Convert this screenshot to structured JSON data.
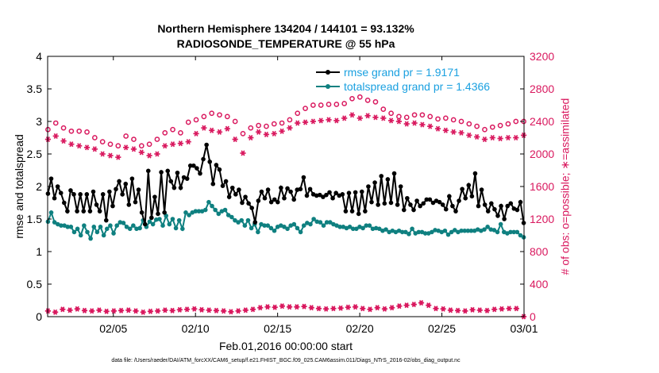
{
  "chart_data": {
    "type": "line",
    "title": "Northern Hemisphere 134204 / 144101 = 93.132%",
    "subtitle": "RADIOSONDE_TEMPERATURE @ 55 hPa",
    "xlabel": "Feb.01,2016 00:00:00 start",
    "ylabel": "rmse and totalspread",
    "y2label": "# of obs: o=possible; ∗=assimilated",
    "footnote": "data file: /Users/raeder/DAI/ATM_forcXX/CAM6_setup/f.e21.FHIST_BGC.f09_025.CAM6assim.011/Diags_NTrS_2016-02/obs_diag_output.nc",
    "xlim": [
      1,
      30
    ],
    "x_ticks": [
      5,
      10,
      15,
      20,
      25,
      30
    ],
    "x_tick_labels": [
      "02/05",
      "02/10",
      "02/15",
      "02/20",
      "02/25",
      "03/01"
    ],
    "ylim": [
      0,
      4
    ],
    "y_ticks": [
      "0",
      "0.5",
      "1",
      "1.5",
      "2",
      "2.5",
      "3",
      "3.5",
      "4"
    ],
    "y2lim": [
      0,
      3200
    ],
    "y2_ticks": [
      "0",
      "400",
      "800",
      "1200",
      "1600",
      "2000",
      "2400",
      "2800",
      "3200"
    ],
    "grid": false,
    "legend_position": "top-right",
    "colors": {
      "rmse": "#000000",
      "spread": "#0f8080",
      "obs": "#d9185e",
      "legend_text": "#1aa0e0"
    },
    "legend": [
      {
        "label": "rmse grand pr = 1.9171"
      },
      {
        "label": "totalspread grand pr = 1.4366"
      }
    ],
    "series": [
      {
        "name": "rmse grand pr = 1.9171",
        "axis": "left",
        "values": [
          1.89,
          2.12,
          1.82,
          2.0,
          1.9,
          1.75,
          1.62,
          1.94,
          1.88,
          1.62,
          1.88,
          1.62,
          1.88,
          1.62,
          1.92,
          1.72,
          1.62,
          1.88,
          1.48,
          1.92,
          1.7,
          1.96,
          2.08,
          1.88,
          2.04,
          1.72,
          2.12,
          1.76,
          1.95,
          1.6,
          1.42,
          2.24,
          1.52,
          1.84,
          1.58,
          2.22,
          1.6,
          2.24,
          2.08,
          1.98,
          2.21,
          1.98,
          2.14,
          2.12,
          2.32,
          2.32,
          2.28,
          2.2,
          2.42,
          2.64,
          2.38,
          2.04,
          2.33,
          2.26,
          2.01,
          2.08,
          1.84,
          1.98,
          1.88,
          1.95,
          1.75,
          1.84,
          1.74,
          1.67,
          1.45,
          1.78,
          1.92,
          1.82,
          1.95,
          1.76,
          1.8,
          1.76,
          1.98,
          1.82,
          1.97,
          1.92,
          1.8,
          1.95,
          1.96,
          2.14,
          1.86,
          1.96,
          1.88,
          1.86,
          1.87,
          1.84,
          1.87,
          1.91,
          1.82,
          1.9,
          1.86,
          1.88,
          1.62,
          1.9,
          1.62,
          1.91,
          1.58,
          1.92,
          1.62,
          2.0,
          1.76,
          2.06,
          1.72,
          2.16,
          1.74,
          2.11,
          1.75,
          2.2,
          1.72,
          2.0,
          1.64,
          1.82,
          1.72,
          1.64,
          1.78,
          1.7,
          1.74,
          1.8,
          1.8,
          1.75,
          1.78,
          1.76,
          1.72,
          1.65,
          1.85,
          1.7,
          1.62,
          1.78,
          1.96,
          1.82,
          2.02,
          1.85,
          2.2,
          1.7,
          1.95,
          1.72,
          1.62,
          1.74,
          1.65,
          1.55,
          1.7,
          1.5,
          1.7,
          1.74,
          1.66,
          1.64,
          1.76,
          1.44
        ]
      },
      {
        "name": "totalspread grand pr = 1.4366",
        "axis": "left",
        "values": [
          1.46,
          1.6,
          1.45,
          1.42,
          1.4,
          1.4,
          1.38,
          1.38,
          1.3,
          1.35,
          1.25,
          1.4,
          1.3,
          1.2,
          1.38,
          1.3,
          1.38,
          1.25,
          1.35,
          1.4,
          1.28,
          1.4,
          1.45,
          1.44,
          1.38,
          1.35,
          1.4,
          1.35,
          1.36,
          1.48,
          1.38,
          1.46,
          1.42,
          1.49,
          1.5,
          1.4,
          1.55,
          1.42,
          1.5,
          1.36,
          1.48,
          1.35,
          1.6,
          1.56,
          1.6,
          1.62,
          1.62,
          1.62,
          1.64,
          1.76,
          1.7,
          1.64,
          1.58,
          1.62,
          1.64,
          1.56,
          1.53,
          1.48,
          1.45,
          1.48,
          1.4,
          1.48,
          1.36,
          1.42,
          1.3,
          1.42,
          1.4,
          1.4,
          1.36,
          1.32,
          1.38,
          1.4,
          1.38,
          1.35,
          1.4,
          1.42,
          1.36,
          1.3,
          1.4,
          1.44,
          1.42,
          1.5,
          1.46,
          1.45,
          1.4,
          1.45,
          1.45,
          1.42,
          1.4,
          1.38,
          1.38,
          1.36,
          1.38,
          1.35,
          1.35,
          1.38,
          1.36,
          1.4,
          1.4,
          1.35,
          1.36,
          1.35,
          1.32,
          1.34,
          1.3,
          1.32,
          1.3,
          1.32,
          1.3,
          1.3,
          1.27,
          1.35,
          1.28,
          1.3,
          1.3,
          1.28,
          1.28,
          1.3,
          1.33,
          1.32,
          1.3,
          1.32,
          1.26,
          1.3,
          1.33,
          1.3,
          1.32,
          1.32,
          1.32,
          1.32,
          1.32,
          1.34,
          1.32,
          1.34,
          1.38,
          1.34,
          1.33,
          1.3,
          1.42,
          1.3,
          1.28,
          1.3,
          1.3,
          1.3,
          1.25,
          1.22
        ]
      },
      {
        "name": "possible",
        "axis": "right",
        "marker": "o",
        "values": [
          2300,
          2380,
          2320,
          2280,
          2280,
          2270,
          2200,
          2150,
          2120,
          2100,
          2220,
          2180,
          2100,
          2120,
          2180,
          2260,
          2300,
          2260,
          2390,
          2420,
          2460,
          2500,
          2480,
          2460,
          2400,
          2250,
          2320,
          2350,
          2340,
          2370,
          2380,
          2420,
          2500,
          2560,
          2600,
          2600,
          2610,
          2610,
          2620,
          2680,
          2700,
          2660,
          2640,
          2550,
          2500,
          2460,
          2450,
          2480,
          2480,
          2460,
          2430,
          2440,
          2420,
          2400,
          2370,
          2340,
          2300,
          2330,
          2350,
          2370,
          2400,
          2400
        ]
      },
      {
        "name": "assimilated",
        "axis": "right",
        "marker": "*",
        "values": [
          2180,
          2220,
          2160,
          2120,
          2100,
          2080,
          2060,
          2000,
          1980,
          1960,
          2080,
          2060,
          2020,
          1980,
          2000,
          2100,
          2120,
          2130,
          2150,
          2250,
          2320,
          2290,
          2270,
          2310,
          2180,
          2010,
          2200,
          2270,
          2240,
          2250,
          2280,
          2320,
          2380,
          2390,
          2400,
          2410,
          2420,
          2410,
          2440,
          2480,
          2440,
          2470,
          2450,
          2440,
          2410,
          2400,
          2370,
          2380,
          2360,
          2340,
          2310,
          2290,
          2270,
          2260,
          2230,
          2210,
          2180,
          2200,
          2190,
          2200,
          2200,
          2230
        ]
      },
      {
        "name": "obs_bottom",
        "axis": "right",
        "marker": "*",
        "values": [
          70,
          55,
          90,
          80,
          95,
          75,
          70,
          80,
          65,
          70,
          75,
          80,
          70,
          55,
          65,
          70,
          80,
          75,
          85,
          90,
          95,
          85,
          80,
          75,
          70,
          60,
          70,
          80,
          90,
          110,
          120,
          115,
          130,
          120,
          120,
          125,
          110,
          100,
          95,
          100,
          105,
          115,
          120,
          100,
          90,
          110,
          95,
          110,
          130,
          140,
          150,
          170,
          140,
          100,
          95,
          80,
          75,
          70,
          85,
          80,
          75,
          90,
          95,
          100,
          100,
          0
        ]
      }
    ]
  }
}
